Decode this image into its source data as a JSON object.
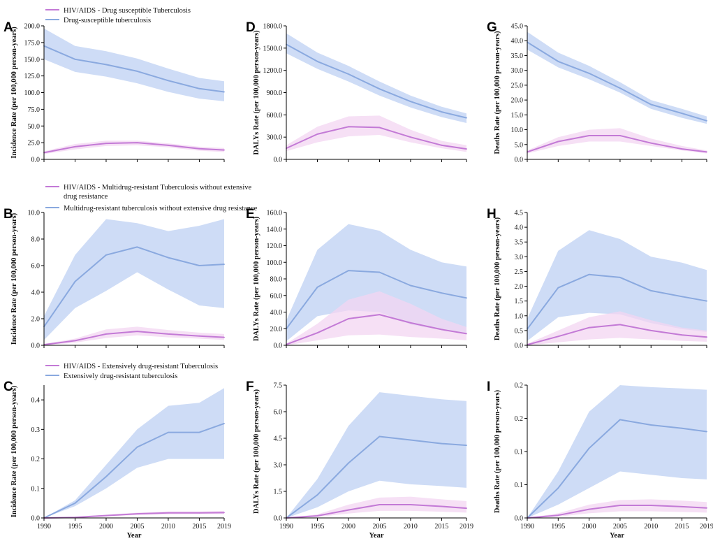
{
  "colors": {
    "blue_line": "#8aa9df",
    "blue_band": "#c9d8f5",
    "pink_line": "#c37ad6",
    "pink_band": "#f3d5f2"
  },
  "legends": [
    {
      "pink": "HIV/AIDS - Drug susceptible Tuberculosis",
      "blue": "Drug-susceptible tuberculosis"
    },
    {
      "pink": "HIV/AIDS - Multidrug-resistant Tuberculosis without extensive drug resistance",
      "blue": "Multidrug-resistant tuberculosis without extensive drug resistance"
    },
    {
      "pink": "HIV/AIDS - Extensively drug-resistant Tuberculosis",
      "blue": "Extensively drug-resistant tuberculosis"
    }
  ],
  "chart_data": [
    {
      "panel": "A",
      "type": "line",
      "xlabel": "",
      "ylabel": "Incidence Rate (per 100,000 person-years)",
      "ylim": [
        0,
        200
      ],
      "yticks": [
        "0.0",
        "25.0",
        "50.0",
        "75.0",
        "100.0",
        "125.0",
        "150.0",
        "175.0",
        "200.0"
      ],
      "xticks": [],
      "x": [
        1990,
        1995,
        2000,
        2005,
        2010,
        2015,
        2019
      ],
      "series": [
        {
          "name": "Drug-susceptible tuberculosis",
          "color": "blue",
          "values": [
            170,
            150,
            142,
            132,
            118,
            106,
            101
          ],
          "lower": [
            150,
            131,
            124,
            114,
            101,
            91,
            87
          ],
          "upper": [
            196,
            170,
            162,
            151,
            136,
            122,
            117
          ]
        },
        {
          "name": "HIV/AIDS - Drug susceptible Tuberculosis",
          "color": "pink",
          "values": [
            10,
            19,
            24,
            25,
            21,
            16,
            14
          ],
          "lower": [
            8,
            15,
            20,
            21,
            18,
            13,
            11
          ],
          "upper": [
            12,
            23,
            28,
            28,
            24,
            19,
            17
          ]
        }
      ]
    },
    {
      "panel": "D",
      "type": "line",
      "xlabel": "",
      "ylabel": "DALYs Rate (per 100,000 person-years)",
      "ylim": [
        0,
        1800
      ],
      "yticks": [
        "0.0",
        "300.0",
        "600.0",
        "900.0",
        "1200.0",
        "1500.0",
        "1800.0"
      ],
      "xticks": [],
      "x": [
        1990,
        1995,
        2000,
        2005,
        2010,
        2015,
        2019
      ],
      "series": [
        {
          "name": "Drug-susceptible tuberculosis",
          "color": "blue",
          "values": [
            1550,
            1320,
            1150,
            950,
            780,
            640,
            560
          ],
          "lower": [
            1430,
            1220,
            1050,
            860,
            700,
            570,
            490
          ],
          "upper": [
            1700,
            1440,
            1260,
            1050,
            860,
            710,
            620
          ]
        },
        {
          "name": "HIV/AIDS - Drug susceptible Tuberculosis",
          "color": "pink",
          "values": [
            150,
            340,
            440,
            430,
            300,
            190,
            140
          ],
          "lower": [
            110,
            230,
            310,
            330,
            230,
            150,
            100
          ],
          "upper": [
            190,
            440,
            580,
            590,
            400,
            250,
            190
          ]
        }
      ]
    },
    {
      "panel": "G",
      "type": "line",
      "xlabel": "",
      "ylabel": "Deaths Rate (per 100,000 person-years)",
      "ylim": [
        0,
        45
      ],
      "yticks": [
        "0.0",
        "5.0",
        "10.0",
        "15.0",
        "20.0",
        "25.0",
        "30.0",
        "35.0",
        "40.0",
        "45.0"
      ],
      "xticks": [],
      "x": [
        1990,
        1995,
        2000,
        2005,
        2010,
        2015,
        2019
      ],
      "series": [
        {
          "name": "Drug-susceptible tuberculosis",
          "color": "blue",
          "values": [
            39.5,
            33,
            29,
            24,
            18.5,
            15.5,
            13
          ],
          "lower": [
            37,
            31,
            27,
            22.5,
            17,
            14,
            12
          ],
          "upper": [
            43,
            36,
            31.5,
            26,
            20,
            17,
            14.5
          ]
        },
        {
          "name": "HIV/AIDS - Drug susceptible Tuberculosis",
          "color": "pink",
          "values": [
            2.5,
            6,
            8,
            8,
            5.5,
            3.5,
            2.5
          ],
          "lower": [
            2,
            4.5,
            6,
            6,
            4.5,
            3,
            2
          ],
          "upper": [
            3,
            7.5,
            10,
            10.5,
            7,
            4.5,
            3
          ]
        }
      ]
    },
    {
      "panel": "B",
      "type": "line",
      "xlabel": "",
      "ylabel": "Incidence Rate (per 100,000 person-years)",
      "ylim": [
        0,
        10
      ],
      "yticks": [
        "0.0",
        "2.0",
        "4.0",
        "6.0",
        "8.0",
        "10.0"
      ],
      "xticks": [],
      "x": [
        1990,
        1995,
        2000,
        2005,
        2010,
        2015,
        2019
      ],
      "series": [
        {
          "name": "Multidrug-resistant tuberculosis without extensive drug resistance",
          "color": "blue",
          "values": [
            1.4,
            4.8,
            6.8,
            7.4,
            6.6,
            6.0,
            6.1
          ],
          "lower": [
            0.4,
            2.8,
            4.1,
            5.5,
            4.2,
            3.0,
            2.8
          ],
          "upper": [
            2.2,
            6.8,
            9.5,
            9.2,
            8.6,
            9.0,
            9.5
          ]
        },
        {
          "name": "HIV/AIDS - Multidrug-resistant Tuberculosis without extensive drug resistance",
          "color": "pink",
          "values": [
            0.05,
            0.35,
            0.85,
            1.05,
            0.85,
            0.7,
            0.6
          ],
          "lower": [
            0.0,
            0.2,
            0.55,
            0.75,
            0.6,
            0.5,
            0.4
          ],
          "upper": [
            0.1,
            0.5,
            1.2,
            1.4,
            1.15,
            0.95,
            0.85
          ]
        }
      ]
    },
    {
      "panel": "E",
      "type": "line",
      "xlabel": "",
      "ylabel": "DALYs Rate (per 100,000 person-years)",
      "ylim": [
        0,
        160
      ],
      "yticks": [
        "0.0",
        "20.0",
        "40.0",
        "60.0",
        "80.0",
        "100.0",
        "120.0",
        "140.0",
        "160.0"
      ],
      "xticks": [],
      "x": [
        1990,
        1995,
        2000,
        2005,
        2010,
        2015,
        2019
      ],
      "series": [
        {
          "name": "Multidrug-resistant tuberculosis without extensive drug resistance",
          "color": "blue",
          "values": [
            20,
            70,
            90,
            88,
            72,
            63,
            57
          ],
          "lower": [
            5,
            35,
            42,
            40,
            25,
            18,
            14
          ],
          "upper": [
            30,
            115,
            146,
            138,
            115,
            100,
            95
          ]
        },
        {
          "name": "HIV/AIDS - Multidrug-resistant Tuberculosis without extensive drug resistance",
          "color": "pink",
          "values": [
            1,
            15,
            32,
            37,
            27,
            19,
            14
          ],
          "lower": [
            0,
            6,
            12,
            13,
            10,
            8,
            6
          ],
          "upper": [
            2,
            26,
            55,
            65,
            50,
            32,
            22
          ]
        }
      ]
    },
    {
      "panel": "H",
      "type": "line",
      "xlabel": "",
      "ylabel": "Deaths Rate (per 100,000 person-years)",
      "ylim": [
        0,
        4.5
      ],
      "yticks": [
        "0.0",
        "0.5",
        "1.0",
        "1.5",
        "2.0",
        "2.5",
        "3.0",
        "3.5",
        "4.0",
        "4.5"
      ],
      "xticks": [],
      "x": [
        1990,
        1995,
        2000,
        2005,
        2010,
        2015,
        2019
      ],
      "series": [
        {
          "name": "Multidrug-resistant tuberculosis without extensive drug resistance",
          "color": "blue",
          "values": [
            0.55,
            1.95,
            2.4,
            2.3,
            1.85,
            1.65,
            1.5
          ],
          "lower": [
            0.15,
            0.95,
            1.1,
            1.05,
            0.75,
            0.55,
            0.45
          ],
          "upper": [
            0.9,
            3.2,
            3.9,
            3.6,
            3.0,
            2.8,
            2.55
          ]
        },
        {
          "name": "HIV/AIDS - Multidrug-resistant Tuberculosis without extensive drug resistance",
          "color": "pink",
          "values": [
            0.02,
            0.3,
            0.6,
            0.7,
            0.5,
            0.35,
            0.28
          ],
          "lower": [
            0.0,
            0.1,
            0.2,
            0.25,
            0.2,
            0.15,
            0.12
          ],
          "upper": [
            0.05,
            0.5,
            0.95,
            1.15,
            0.85,
            0.6,
            0.5
          ]
        }
      ]
    },
    {
      "panel": "C",
      "type": "line",
      "xlabel": "Year",
      "ylabel": "Incidence Rate (per 100,000 person-years)",
      "ylim": [
        0,
        0.45
      ],
      "yticks": [
        "0.0",
        "0.1",
        "0.2",
        "0.3",
        "0.4"
      ],
      "ytick_values": [
        0,
        0.1,
        0.2,
        0.3,
        0.4
      ],
      "xticks": [
        "1990",
        "1995",
        "2000",
        "2005",
        "2010",
        "2015",
        "2019"
      ],
      "x": [
        1990,
        1995,
        2000,
        2005,
        2010,
        2015,
        2019
      ],
      "series": [
        {
          "name": "Extensively drug-resistant tuberculosis",
          "color": "blue",
          "values": [
            0.0,
            0.05,
            0.14,
            0.24,
            0.29,
            0.29,
            0.32
          ],
          "lower": [
            0.0,
            0.04,
            0.1,
            0.17,
            0.2,
            0.2,
            0.2
          ],
          "upper": [
            0.0,
            0.06,
            0.18,
            0.3,
            0.38,
            0.39,
            0.44
          ]
        },
        {
          "name": "HIV/AIDS - Extensively drug-resistant Tuberculosis",
          "color": "pink",
          "values": [
            0.0,
            0.002,
            0.008,
            0.014,
            0.017,
            0.017,
            0.018
          ],
          "lower": [
            0.0,
            0.001,
            0.005,
            0.01,
            0.012,
            0.013,
            0.013
          ],
          "upper": [
            0.0,
            0.003,
            0.011,
            0.018,
            0.022,
            0.022,
            0.024
          ]
        }
      ]
    },
    {
      "panel": "F",
      "type": "line",
      "xlabel": "Year",
      "ylabel": "DALYs Rate (per 100,000 person-years)",
      "ylim": [
        0,
        7.5
      ],
      "yticks": [
        "0.0",
        "1.5",
        "3.0",
        "4.5",
        "6.0",
        "7.5"
      ],
      "xticks": [
        "1990",
        "1995",
        "2000",
        "2005",
        "2010",
        "2015",
        "2019"
      ],
      "x": [
        1990,
        1995,
        2000,
        2005,
        2010,
        2015,
        2019
      ],
      "series": [
        {
          "name": "Extensively drug-resistant tuberculosis",
          "color": "blue",
          "values": [
            0.0,
            1.3,
            3.1,
            4.6,
            4.4,
            4.2,
            4.1
          ],
          "lower": [
            0.0,
            0.6,
            1.5,
            2.1,
            1.9,
            1.8,
            1.7
          ],
          "upper": [
            0.0,
            2.2,
            5.2,
            7.1,
            6.9,
            6.7,
            6.6
          ]
        },
        {
          "name": "HIV/AIDS - Extensively drug-resistant Tuberculosis",
          "color": "pink",
          "values": [
            0.0,
            0.12,
            0.45,
            0.75,
            0.75,
            0.65,
            0.55
          ],
          "lower": [
            0.0,
            0.06,
            0.25,
            0.4,
            0.4,
            0.35,
            0.3
          ],
          "upper": [
            0.0,
            0.2,
            0.75,
            1.15,
            1.2,
            1.05,
            0.95
          ]
        }
      ]
    },
    {
      "panel": "I",
      "type": "line",
      "xlabel": "Year",
      "ylabel": "Deaths Rate (per 100,000 person-years)",
      "ylim": [
        0,
        0.2
      ],
      "yticks": [
        "0.0",
        "0.1",
        "0.1",
        "0.2",
        "0.2"
      ],
      "ytick_values": [
        0,
        0.05,
        0.1,
        0.15,
        0.2
      ],
      "xticks": [
        "1990",
        "1995",
        "2000",
        "2005",
        "2010",
        "2015",
        "2019"
      ],
      "x": [
        1990,
        1995,
        2000,
        2005,
        2010,
        2015,
        2019
      ],
      "series": [
        {
          "name": "Extensively drug-resistant tuberculosis",
          "color": "blue",
          "values": [
            0.0,
            0.045,
            0.105,
            0.148,
            0.14,
            0.135,
            0.13
          ],
          "lower": [
            0.0,
            0.02,
            0.045,
            0.07,
            0.065,
            0.06,
            0.058
          ],
          "upper": [
            0.0,
            0.07,
            0.16,
            0.2,
            0.197,
            0.195,
            0.193
          ]
        },
        {
          "name": "HIV/AIDS - Extensively drug-resistant Tuberculosis",
          "color": "pink",
          "values": [
            0.0,
            0.004,
            0.013,
            0.019,
            0.019,
            0.017,
            0.015
          ],
          "lower": [
            0.0,
            0.002,
            0.007,
            0.01,
            0.01,
            0.009,
            0.008
          ],
          "upper": [
            0.0,
            0.007,
            0.02,
            0.027,
            0.028,
            0.026,
            0.024
          ]
        }
      ]
    }
  ]
}
